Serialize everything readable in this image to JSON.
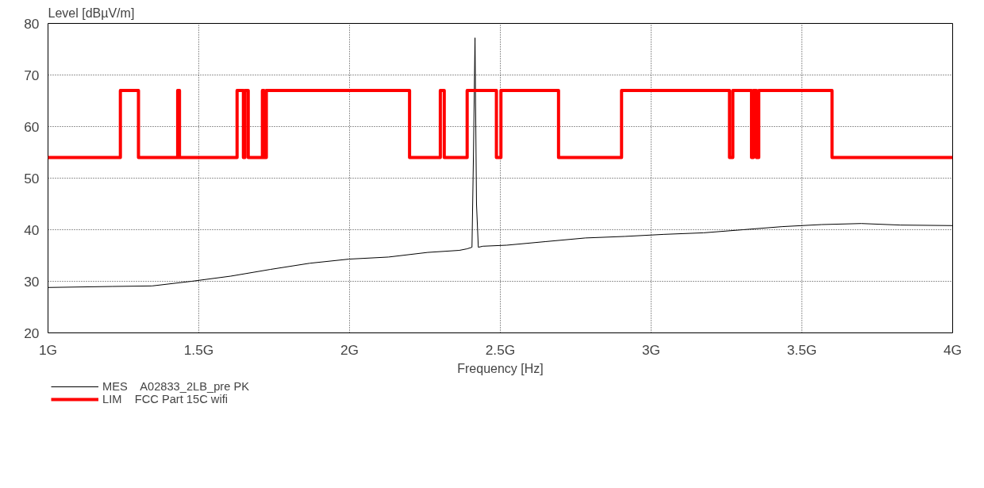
{
  "chart_data": {
    "type": "line",
    "xlabel": "Frequency [Hz]",
    "ylabel": "Level [dBµV/m]",
    "xlim": [
      1,
      4
    ],
    "ylim": [
      20,
      80
    ],
    "xticks": [
      {
        "value": 1,
        "label": "1G"
      },
      {
        "value": 1.5,
        "label": "1.5G"
      },
      {
        "value": 2,
        "label": "2G"
      },
      {
        "value": 2.5,
        "label": "2.5G"
      },
      {
        "value": 3,
        "label": "3G"
      },
      {
        "value": 3.5,
        "label": "3.5G"
      },
      {
        "value": 4,
        "label": "4G"
      }
    ],
    "yticks": [
      20,
      30,
      40,
      50,
      60,
      70,
      80
    ],
    "grid": true,
    "legend": "bottom",
    "series": [
      {
        "name": "MES    A02833_2LB_pre PK",
        "color": "#000000",
        "x": [
          1.0,
          1.214,
          1.345,
          1.476,
          1.606,
          1.737,
          1.868,
          1.998,
          2.129,
          2.259,
          2.364,
          2.39,
          2.406,
          2.411,
          2.416,
          2.421,
          2.427,
          2.442,
          2.521,
          2.651,
          2.782,
          2.913,
          3.043,
          3.174,
          3.305,
          3.435,
          3.566,
          3.697,
          3.827,
          4.0
        ],
        "values": [
          28.8,
          29.0,
          29.1,
          30.0,
          31.0,
          32.3,
          33.5,
          34.3,
          34.7,
          35.6,
          36.0,
          36.3,
          36.6,
          55,
          77.2,
          45,
          36.6,
          36.8,
          37.0,
          37.7,
          38.4,
          38.7,
          39.1,
          39.4,
          40.0,
          40.6,
          41.0,
          41.2,
          40.9,
          40.8
        ]
      },
      {
        "name": "LIM    FCC Part 15C wifi",
        "color": "#ff0000",
        "type": "step",
        "x": [
          1.0,
          1.24,
          1.3,
          1.43,
          1.436,
          1.627,
          1.648,
          1.653,
          1.664,
          1.711,
          1.716,
          1.724,
          2.199,
          2.301,
          2.314,
          2.39,
          2.487,
          2.502,
          2.693,
          2.902,
          3.26,
          3.271,
          3.333,
          3.339,
          3.349,
          3.357,
          3.6,
          4.0
        ],
        "values": [
          54,
          67,
          54,
          67,
          54,
          67,
          54,
          67,
          54,
          67,
          54,
          67,
          54,
          67,
          54,
          67,
          54,
          67,
          54,
          67,
          54,
          67,
          54,
          67,
          54,
          67,
          54,
          54
        ]
      }
    ]
  }
}
